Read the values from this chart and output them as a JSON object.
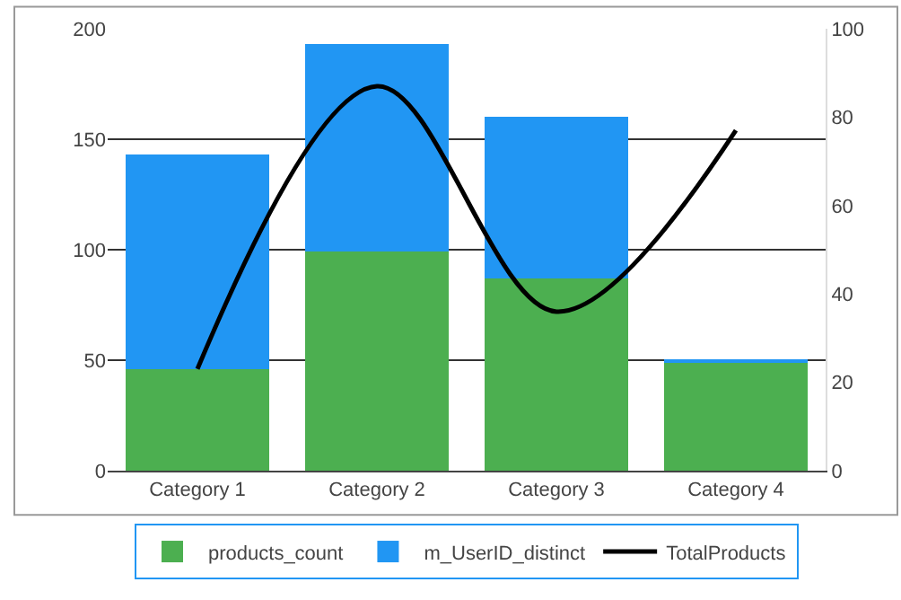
{
  "chart_data": {
    "type": "bar",
    "stacked": true,
    "categories": [
      "Category 1",
      "Category 2",
      "Category 3",
      "Category 4"
    ],
    "series": [
      {
        "name": "products_count",
        "color": "#4caf50",
        "values": [
          46,
          99,
          87,
          49
        ]
      },
      {
        "name": "m_UserID_distinct",
        "color": "#2196f3",
        "values": [
          97,
          94,
          73,
          1
        ]
      },
      {
        "name": "TotalProducts",
        "type": "line",
        "axis": "y2",
        "color": "#000000",
        "values": [
          23,
          87,
          36,
          77
        ]
      }
    ],
    "ylim": [
      0,
      200
    ],
    "yticks": [
      0,
      50,
      100,
      150,
      200
    ],
    "y2lim": [
      0,
      100
    ],
    "y2ticks": [
      0,
      20,
      40,
      60,
      80,
      100
    ],
    "grid": "y",
    "legend": "bottom",
    "marker": "none",
    "line_style": "solid"
  }
}
